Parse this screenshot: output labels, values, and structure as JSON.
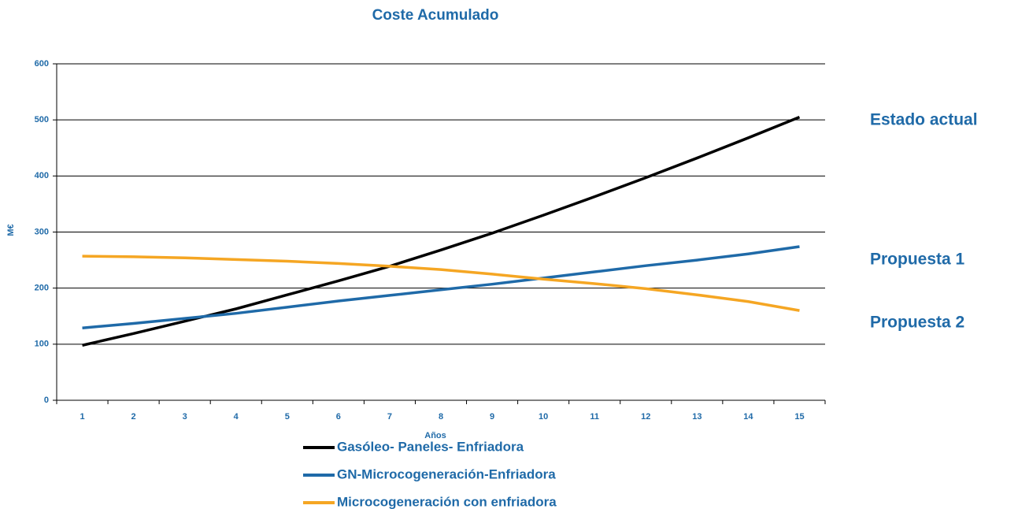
{
  "chart_data": {
    "type": "line",
    "title": "Coste Acumulado",
    "x_label": "Años",
    "y_label": "M€",
    "categories": [
      "1",
      "2",
      "3",
      "4",
      "5",
      "6",
      "7",
      "8",
      "9",
      "10",
      "11",
      "12",
      "13",
      "14",
      "15"
    ],
    "series": [
      {
        "name": "Gasóleo- Paneles- Enfriadora",
        "color": "#000000",
        "values": [
          98,
          119,
          141,
          163,
          188,
          213,
          239,
          268,
          298,
          330,
          363,
          397,
          432,
          468,
          505
        ]
      },
      {
        "name": "GN-Microcogeneración-Enfriadora",
        "color": "#1f6aa8",
        "values": [
          129,
          137,
          146,
          155,
          166,
          177,
          187,
          197,
          207,
          218,
          229,
          240,
          250,
          261,
          274
        ]
      },
      {
        "name": "Microcogeneración con enfriadora",
        "color": "#f5a623",
        "values": [
          257,
          256,
          254,
          251,
          248,
          244,
          239,
          233,
          225,
          216,
          208,
          199,
          188,
          176,
          160
        ]
      }
    ],
    "annotations": [
      "Estado actual",
      "Propuesta 1",
      "Propuesta 2"
    ],
    "ylim": [
      0,
      600
    ],
    "yticks": [
      0,
      100,
      200,
      300,
      400,
      500,
      600
    ],
    "grid": true
  }
}
